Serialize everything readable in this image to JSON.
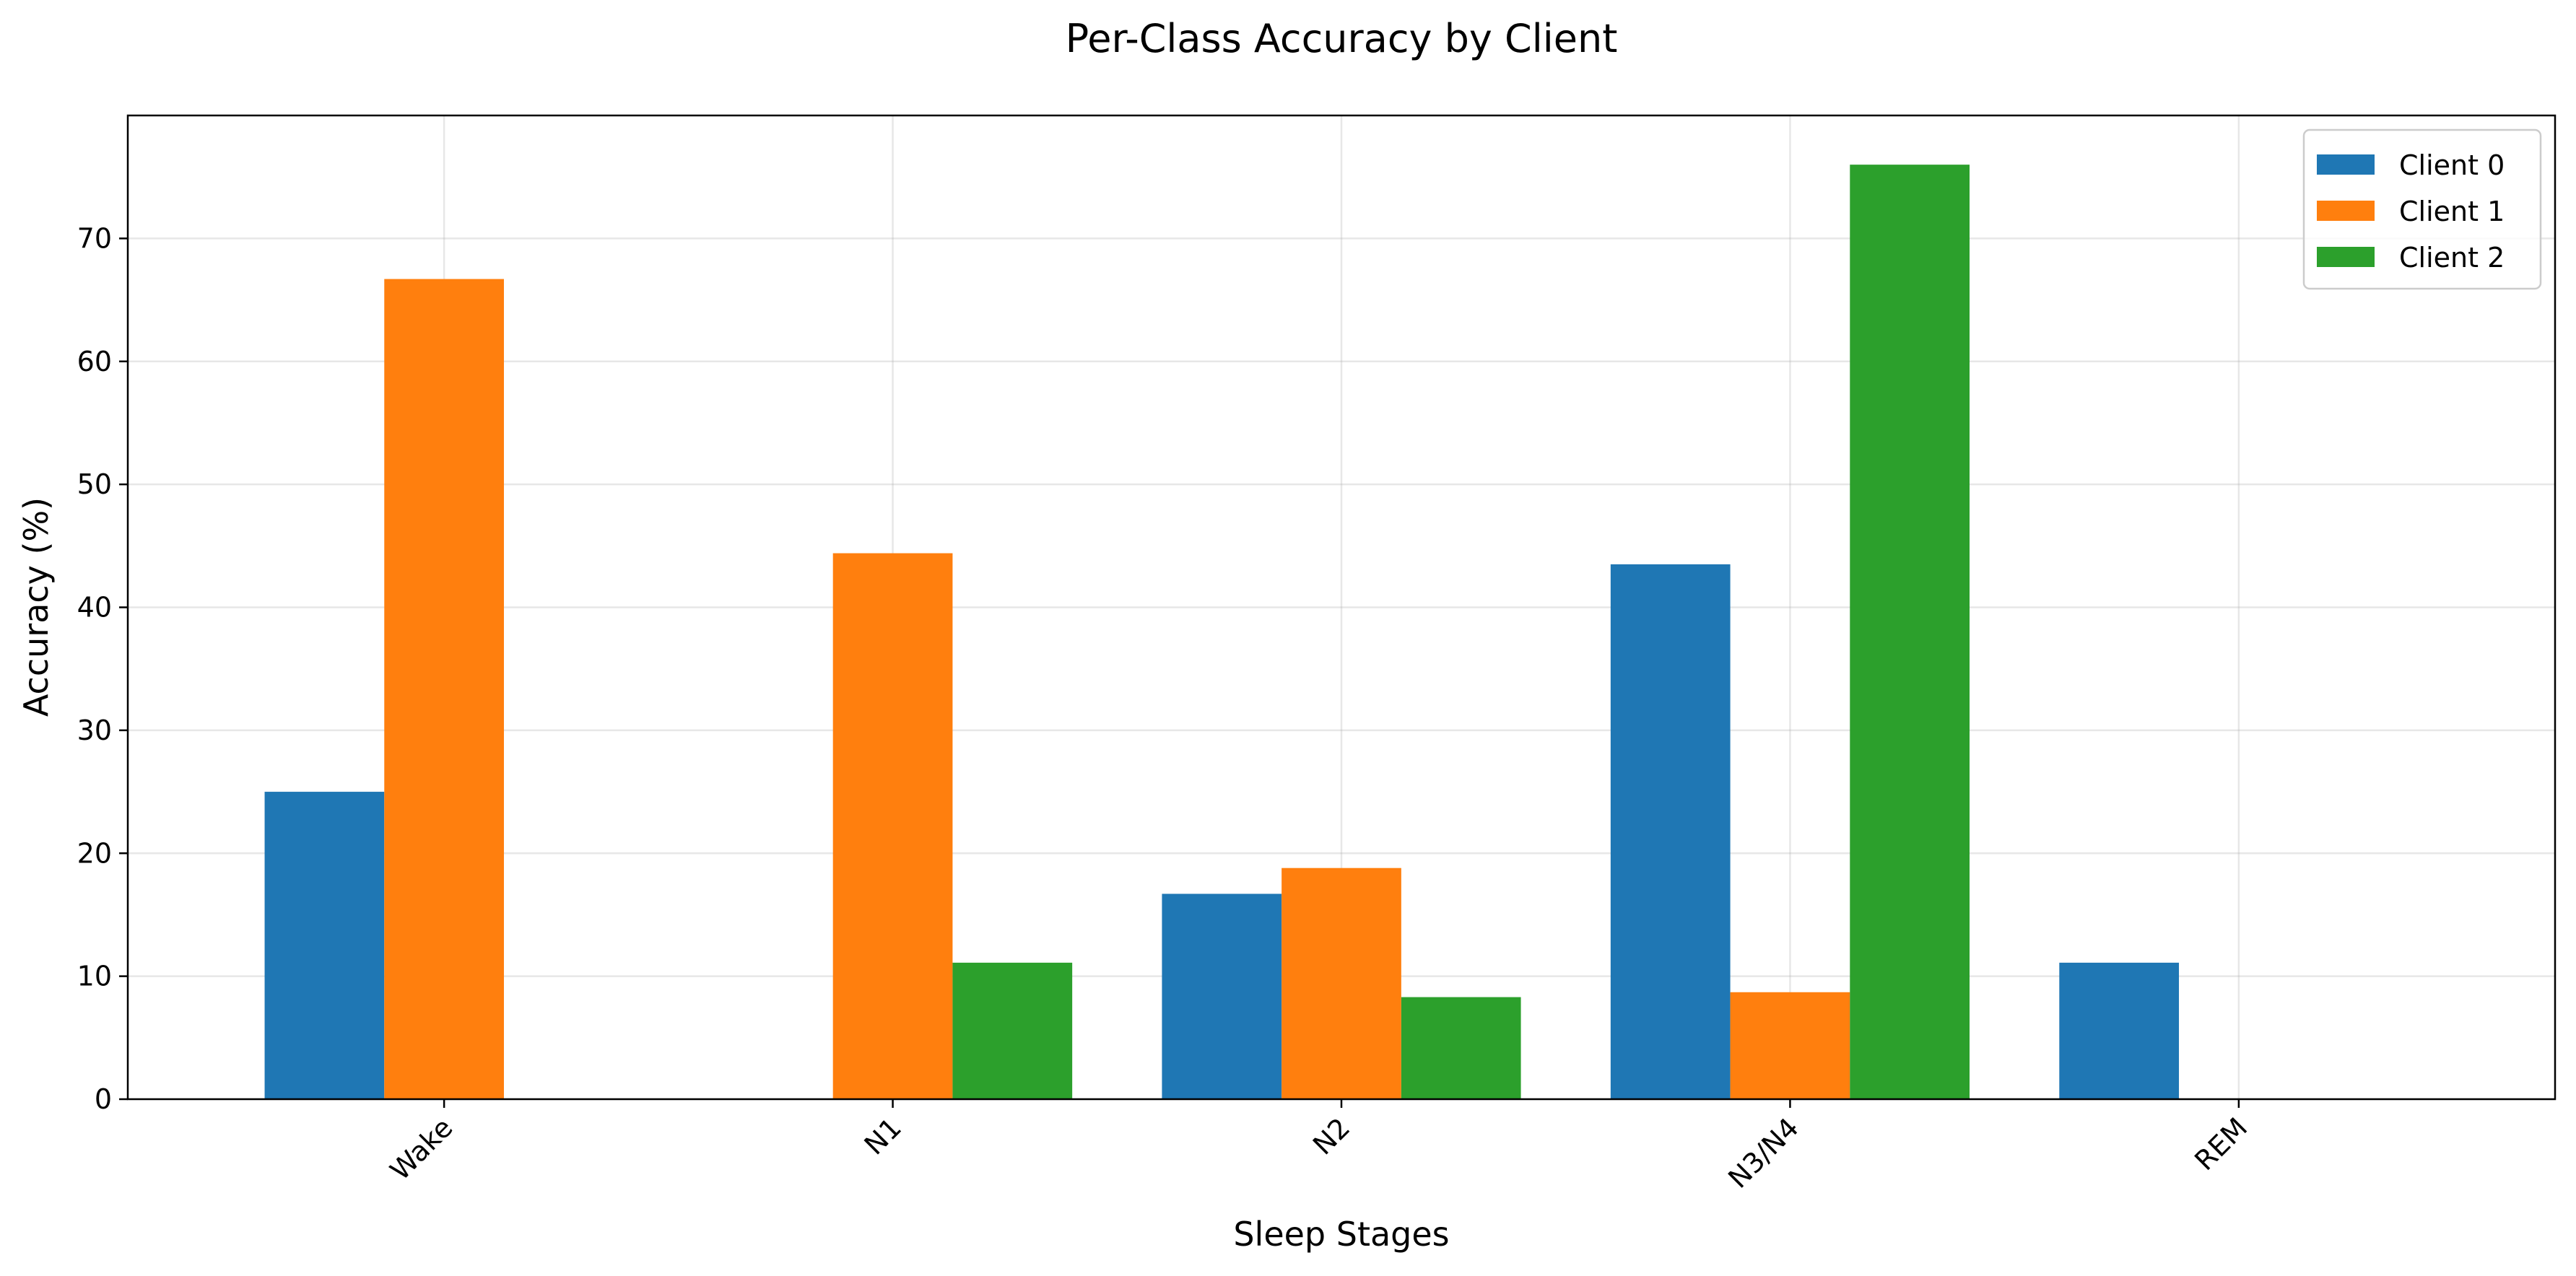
{
  "chart_data": {
    "type": "bar",
    "title": "Per-Class Accuracy by Client",
    "xlabel": "Sleep Stages",
    "ylabel": "Accuracy (%)",
    "categories": [
      "Wake",
      "N1",
      "N2",
      "N3/N4",
      "REM"
    ],
    "series": [
      {
        "name": "Client 0",
        "color": "#1f77b4",
        "values": [
          25.0,
          0.0,
          16.7,
          43.5,
          11.1
        ]
      },
      {
        "name": "Client 1",
        "color": "#ff7f0e",
        "values": [
          66.7,
          44.4,
          18.8,
          8.7,
          0.0
        ]
      },
      {
        "name": "Client 2",
        "color": "#2ca02c",
        "values": [
          0.0,
          11.1,
          8.3,
          76.0,
          0.0
        ]
      }
    ],
    "ylim": [
      0,
      80
    ],
    "yticks": [
      0,
      10,
      20,
      30,
      40,
      50,
      60,
      70
    ],
    "grid": true,
    "legend_position": "top-right",
    "xtick_rotation_deg": 45
  }
}
